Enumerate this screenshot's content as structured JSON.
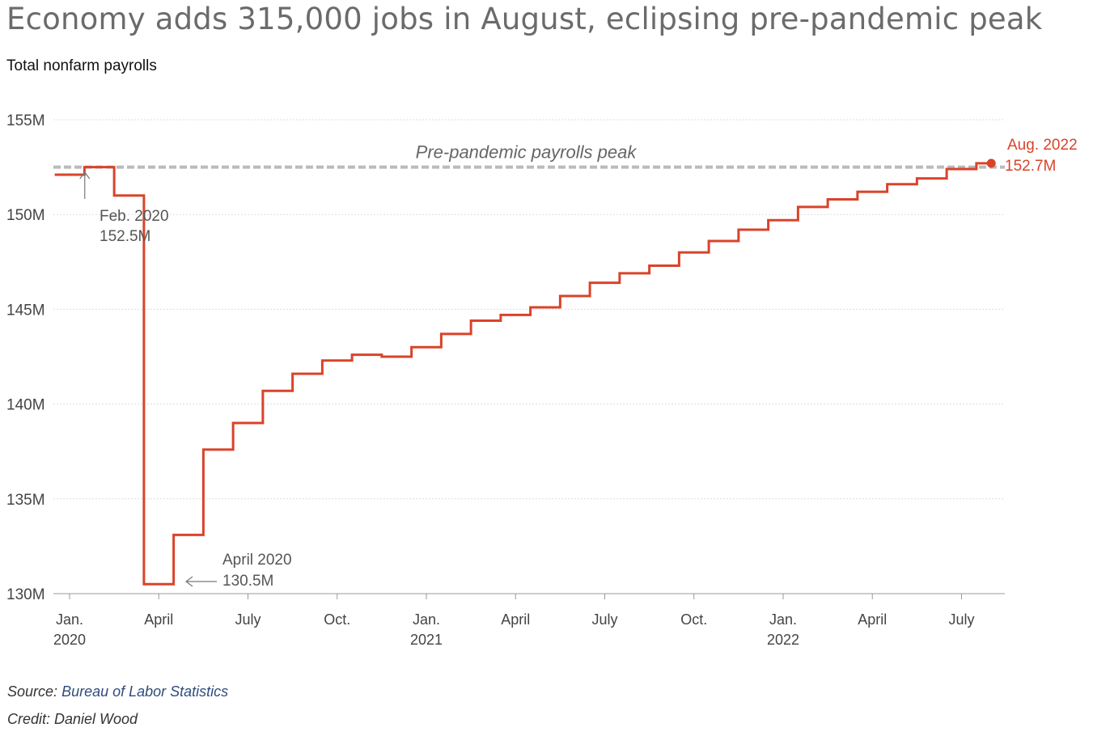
{
  "title": "Economy adds 315,000 jobs in August, eclipsing pre-pandemic peak",
  "subtitle": "Total nonfarm payrolls",
  "footer": {
    "source_prefix": "Source:",
    "source_name": "Bureau of Labor Statistics",
    "credit": "Credit: Daniel Wood"
  },
  "colors": {
    "series": "#d9432a",
    "reference_line": "#bbbbbb",
    "grid": "#dddddd",
    "axis_text": "#444444",
    "annotation_text": "#555555",
    "link": "#2f4b7c"
  },
  "chart_data": {
    "type": "line",
    "step": true,
    "ylim": [
      130,
      155
    ],
    "y_ticks": [
      {
        "value": 130,
        "label": "130M"
      },
      {
        "value": 135,
        "label": "135M"
      },
      {
        "value": 140,
        "label": "140M"
      },
      {
        "value": 145,
        "label": "145M"
      },
      {
        "value": 150,
        "label": "150M"
      },
      {
        "value": 155,
        "label": "155M"
      }
    ],
    "x_ticks": [
      {
        "date": "2020-01",
        "label": "Jan.",
        "year": "2020"
      },
      {
        "date": "2020-04",
        "label": "April",
        "year": ""
      },
      {
        "date": "2020-07",
        "label": "July",
        "year": ""
      },
      {
        "date": "2020-10",
        "label": "Oct.",
        "year": ""
      },
      {
        "date": "2021-01",
        "label": "Jan.",
        "year": "2021"
      },
      {
        "date": "2021-04",
        "label": "April",
        "year": ""
      },
      {
        "date": "2021-07",
        "label": "July",
        "year": ""
      },
      {
        "date": "2021-10",
        "label": "Oct.",
        "year": ""
      },
      {
        "date": "2022-01",
        "label": "Jan.",
        "year": "2022"
      },
      {
        "date": "2022-04",
        "label": "April",
        "year": ""
      },
      {
        "date": "2022-07",
        "label": "July",
        "year": ""
      }
    ],
    "series": [
      {
        "values": [
          {
            "date": "2020-01",
            "value": 152.1
          },
          {
            "date": "2020-02",
            "value": 152.5
          },
          {
            "date": "2020-03",
            "value": 151.0
          },
          {
            "date": "2020-04",
            "value": 130.5
          },
          {
            "date": "2020-05",
            "value": 133.1
          },
          {
            "date": "2020-06",
            "value": 137.6
          },
          {
            "date": "2020-07",
            "value": 139.0
          },
          {
            "date": "2020-08",
            "value": 140.7
          },
          {
            "date": "2020-09",
            "value": 141.6
          },
          {
            "date": "2020-10",
            "value": 142.3
          },
          {
            "date": "2020-11",
            "value": 142.6
          },
          {
            "date": "2020-12",
            "value": 142.5
          },
          {
            "date": "2021-01",
            "value": 143.0
          },
          {
            "date": "2021-02",
            "value": 143.7
          },
          {
            "date": "2021-03",
            "value": 144.4
          },
          {
            "date": "2021-04",
            "value": 144.7
          },
          {
            "date": "2021-05",
            "value": 145.1
          },
          {
            "date": "2021-06",
            "value": 145.7
          },
          {
            "date": "2021-07",
            "value": 146.4
          },
          {
            "date": "2021-08",
            "value": 146.9
          },
          {
            "date": "2021-09",
            "value": 147.3
          },
          {
            "date": "2021-10",
            "value": 148.0
          },
          {
            "date": "2021-11",
            "value": 148.6
          },
          {
            "date": "2021-12",
            "value": 149.2
          },
          {
            "date": "2022-01",
            "value": 149.7
          },
          {
            "date": "2022-02",
            "value": 150.4
          },
          {
            "date": "2022-03",
            "value": 150.8
          },
          {
            "date": "2022-04",
            "value": 151.2
          },
          {
            "date": "2022-05",
            "value": 151.6
          },
          {
            "date": "2022-06",
            "value": 151.9
          },
          {
            "date": "2022-07",
            "value": 152.4
          },
          {
            "date": "2022-08",
            "value": 152.7
          }
        ]
      }
    ],
    "reference_line": {
      "value": 152.5,
      "label": "Pre-pandemic payrolls peak"
    },
    "annotations": [
      {
        "date": "2020-02",
        "line1": "Feb. 2020",
        "line2": "152.5M"
      },
      {
        "date": "2020-04",
        "line1": "April 2020",
        "line2": "130.5M"
      },
      {
        "date": "2022-08",
        "line1": "Aug. 2022",
        "line2": "152.7M"
      }
    ],
    "grid": true
  }
}
